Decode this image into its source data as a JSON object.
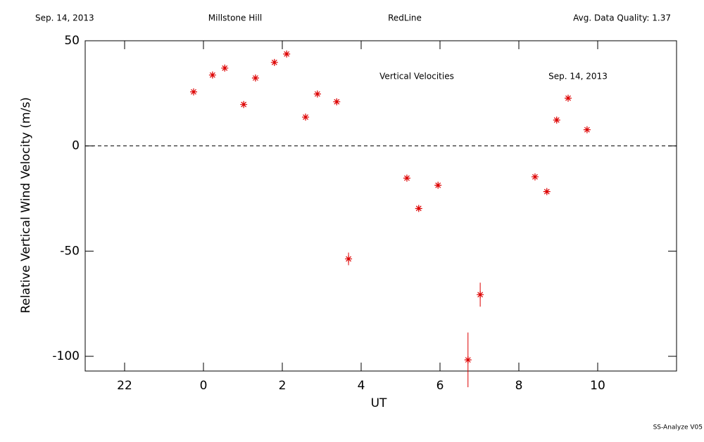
{
  "header": {
    "date": "Sep. 14, 2013",
    "site": "Millstone Hill",
    "line": "RedLine",
    "quality": "Avg. Data Quality: 1.37"
  },
  "footer": "SS-Analyze V05",
  "chart_data": {
    "type": "scatter",
    "annotations": [
      "Vertical Velocities",
      "Sep. 14, 2013"
    ],
    "ylabel": "Relative Vertical Wind Velocity (m/s)",
    "xlabel": "UT",
    "color": "#dd0000",
    "x": [
      -0.25,
      0.23,
      0.54,
      1.02,
      1.32,
      1.8,
      2.11,
      2.59,
      2.89,
      3.38,
      3.68,
      5.16,
      5.46,
      5.95,
      6.71,
      7.02,
      8.41,
      8.71,
      8.96,
      9.25,
      9.73
    ],
    "values": [
      25.7,
      33.7,
      37,
      19.7,
      32.3,
      39.7,
      43.7,
      13.7,
      24.7,
      21,
      -53.7,
      -15.3,
      -29.7,
      -18.7,
      -101.7,
      -70.7,
      -14.7,
      -21.7,
      12.3,
      22.7,
      7.7
    ],
    "errors": [
      1,
      1,
      1,
      1,
      1,
      1,
      1,
      1,
      1,
      1,
      3,
      1,
      1,
      1,
      13,
      5.7,
      1,
      1,
      1,
      1,
      1
    ],
    "zero_line": 0,
    "xlim": [
      -3,
      12
    ],
    "xticks": [
      {
        "value": -2,
        "label": "22"
      },
      0,
      2,
      4,
      6,
      8,
      10
    ],
    "ylim": [
      -107,
      50
    ],
    "yticks": [
      -100,
      -50,
      0,
      50
    ]
  }
}
